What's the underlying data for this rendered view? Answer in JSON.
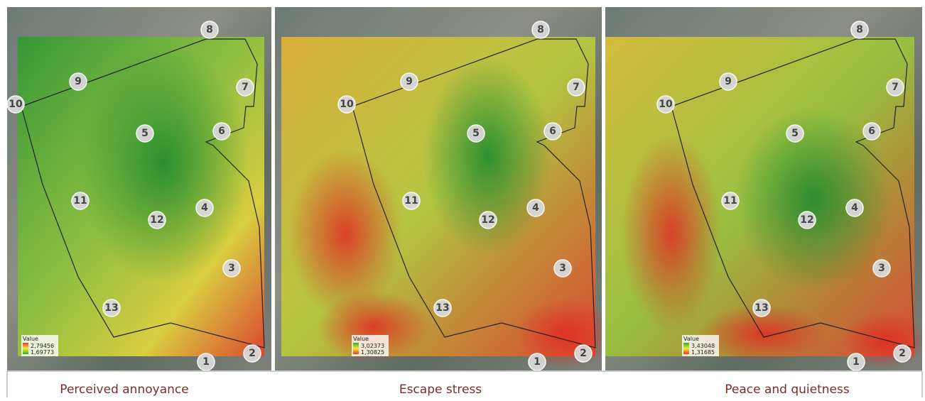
{
  "panels": [
    {
      "caption": "Perceived annoyance",
      "legend": {
        "title": "Value",
        "max": "2,79456",
        "min": "1,69773"
      }
    },
    {
      "caption": "Escape stress",
      "legend": {
        "title": "Value",
        "max": "3,02373",
        "min": "1,30825"
      }
    },
    {
      "caption": "Peace and quietness",
      "legend": {
        "title": "Value",
        "max": "3,43048",
        "min": "1,31685"
      }
    }
  ],
  "markers": [
    "1",
    "2",
    "3",
    "4",
    "5",
    "6",
    "7",
    "8",
    "9",
    "10",
    "11",
    "12",
    "13"
  ]
}
